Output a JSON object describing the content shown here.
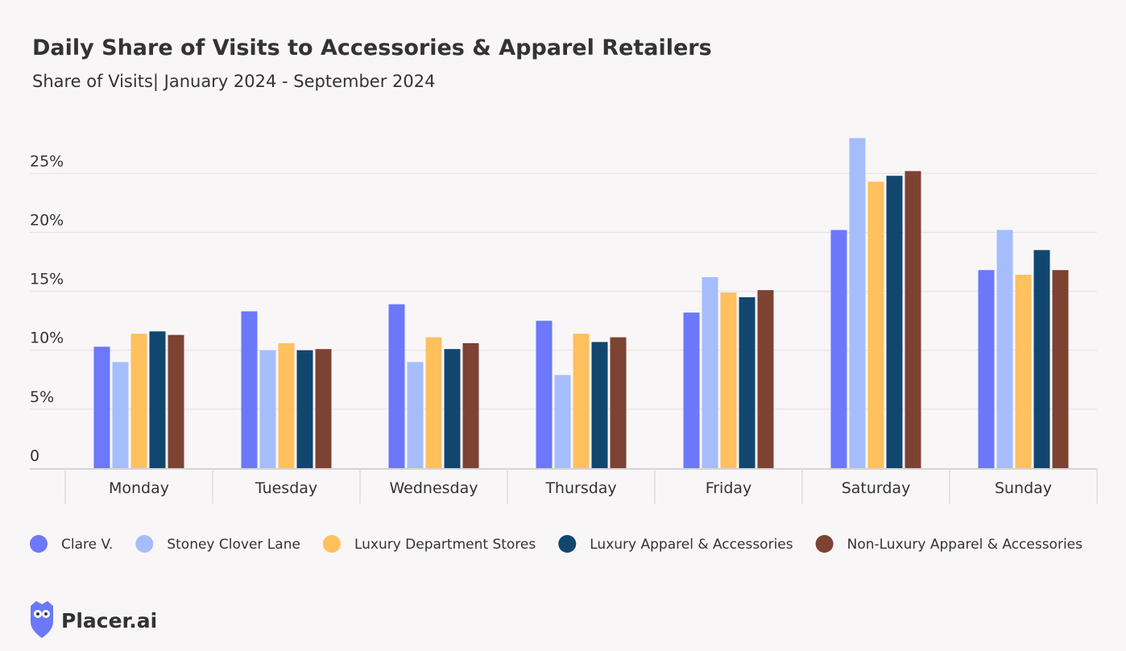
{
  "chart_data": {
    "type": "bar",
    "title": "Daily Share of Visits to Accessories & Apparel Retailers",
    "subtitle": "Share of Visits| January 2024 - September 2024",
    "categories": [
      "Monday",
      "Tuesday",
      "Wednesday",
      "Thursday",
      "Friday",
      "Saturday",
      "Sunday"
    ],
    "series": [
      {
        "name": "Clare V.",
        "color": "#6b78fa",
        "values": [
          10.3,
          13.3,
          13.9,
          12.5,
          13.2,
          20.2,
          16.8
        ]
      },
      {
        "name": "Stoney Clover Lane",
        "color": "#a6bdfc",
        "values": [
          9.0,
          10.0,
          9.0,
          7.9,
          16.2,
          28.0,
          20.2
        ]
      },
      {
        "name": "Luxury Department Stores",
        "color": "#ffc05e",
        "values": [
          11.4,
          10.6,
          11.1,
          11.4,
          14.9,
          24.3,
          16.4
        ]
      },
      {
        "name": "Luxury Apparel & Accessories",
        "color": "#11466e",
        "values": [
          11.6,
          10.0,
          10.1,
          10.7,
          14.5,
          24.8,
          18.5
        ]
      },
      {
        "name": "Non-Luxury Apparel & Accessories",
        "color": "#7d4232",
        "values": [
          11.3,
          10.1,
          10.6,
          11.1,
          15.1,
          25.2,
          16.8
        ]
      }
    ],
    "ylim": [
      0,
      28.3
    ],
    "yticks": [
      0,
      {
        "value": 5,
        "label": "5%"
      },
      {
        "value": 10,
        "label": "10%"
      },
      {
        "value": 15,
        "label": "15%"
      },
      {
        "value": 20,
        "label": "20%"
      },
      {
        "value": 25,
        "label": "25%"
      }
    ],
    "grid": true,
    "legend": "bottom"
  },
  "brand": "Placer.ai"
}
